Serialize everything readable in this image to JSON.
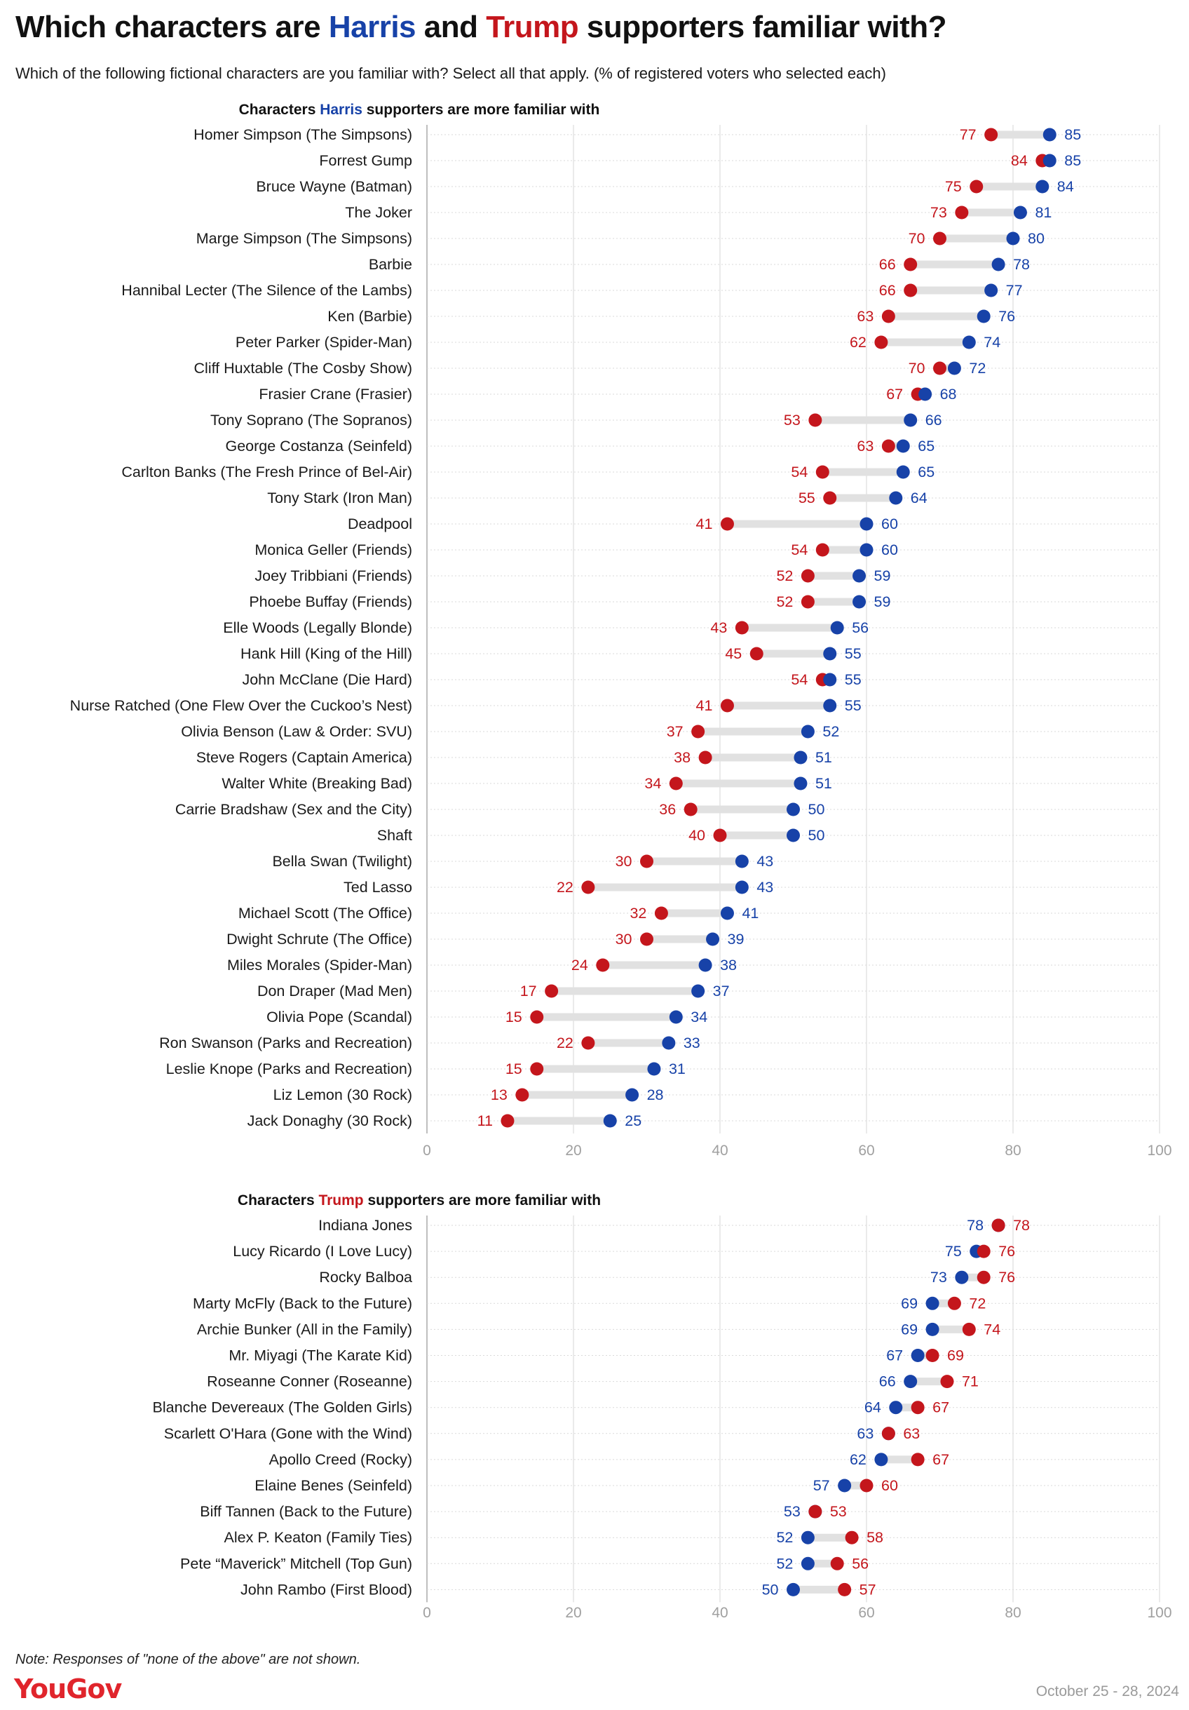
{
  "title": {
    "prefix": "Which characters are ",
    "harris": "Harris",
    "and": " and ",
    "trump": "Trump",
    "suffix": " supporters familiar with?"
  },
  "subtitle": "Which of the following fictional characters are you familiar with? Select all that apply. (% of registered voters who selected each)",
  "note": "Note: Responses of \"none of the above\" are not shown.",
  "logo": "YouGov",
  "date": "October 25 - 28, 2024",
  "colors": {
    "harris": "#1742a8",
    "trump": "#c4161c",
    "connector": "#e1e1e1",
    "grid": "#d6d6d6",
    "axis": "#a9a9a9"
  },
  "chart_data": [
    {
      "type": "dumbbell",
      "title_prefix": "Characters ",
      "title_highlight": "Harris",
      "title_suffix": " supporters are more familiar with",
      "highlight_color": "#1742a8",
      "xlim": [
        0,
        100
      ],
      "xticks": [
        0,
        20,
        40,
        60,
        80,
        100
      ],
      "series": [
        "Harris",
        "Trump"
      ],
      "rows": [
        {
          "label": "Homer Simpson (The Simpsons)",
          "harris": 85,
          "trump": 77
        },
        {
          "label": "Forrest Gump",
          "harris": 85,
          "trump": 84
        },
        {
          "label": "Bruce Wayne (Batman)",
          "harris": 84,
          "trump": 75
        },
        {
          "label": "The Joker",
          "harris": 81,
          "trump": 73
        },
        {
          "label": "Marge Simpson (The Simpsons)",
          "harris": 80,
          "trump": 70
        },
        {
          "label": "Barbie",
          "harris": 78,
          "trump": 66
        },
        {
          "label": "Hannibal Lecter (The Silence of the Lambs)",
          "harris": 77,
          "trump": 66
        },
        {
          "label": "Ken (Barbie)",
          "harris": 76,
          "trump": 63
        },
        {
          "label": "Peter Parker (Spider-Man)",
          "harris": 74,
          "trump": 62
        },
        {
          "label": "Cliff Huxtable (The Cosby Show)",
          "harris": 72,
          "trump": 70
        },
        {
          "label": "Frasier Crane (Frasier)",
          "harris": 68,
          "trump": 67
        },
        {
          "label": "Tony Soprano (The Sopranos)",
          "harris": 66,
          "trump": 53
        },
        {
          "label": "George Costanza (Seinfeld)",
          "harris": 65,
          "trump": 63
        },
        {
          "label": "Carlton Banks (The Fresh Prince of Bel-Air)",
          "harris": 65,
          "trump": 54
        },
        {
          "label": "Tony Stark (Iron Man)",
          "harris": 64,
          "trump": 55
        },
        {
          "label": "Deadpool",
          "harris": 60,
          "trump": 41
        },
        {
          "label": "Monica Geller (Friends)",
          "harris": 60,
          "trump": 54
        },
        {
          "label": "Joey Tribbiani (Friends)",
          "harris": 59,
          "trump": 52
        },
        {
          "label": "Phoebe Buffay (Friends)",
          "harris": 59,
          "trump": 52
        },
        {
          "label": "Elle Woods (Legally Blonde)",
          "harris": 56,
          "trump": 43
        },
        {
          "label": "Hank Hill (King of the Hill)",
          "harris": 55,
          "trump": 45
        },
        {
          "label": "John McClane (Die Hard)",
          "harris": 55,
          "trump": 54
        },
        {
          "label": "Nurse Ratched (One Flew Over the Cuckoo’s Nest)",
          "harris": 55,
          "trump": 41
        },
        {
          "label": "Olivia Benson (Law & Order: SVU)",
          "harris": 52,
          "trump": 37
        },
        {
          "label": "Steve Rogers (Captain America)",
          "harris": 51,
          "trump": 38
        },
        {
          "label": "Walter White (Breaking Bad)",
          "harris": 51,
          "trump": 34
        },
        {
          "label": "Carrie Bradshaw (Sex and the City)",
          "harris": 50,
          "trump": 36
        },
        {
          "label": "Shaft",
          "harris": 50,
          "trump": 40
        },
        {
          "label": "Bella Swan (Twilight)",
          "harris": 43,
          "trump": 30
        },
        {
          "label": "Ted Lasso",
          "harris": 43,
          "trump": 22
        },
        {
          "label": "Michael Scott (The Office)",
          "harris": 41,
          "trump": 32
        },
        {
          "label": "Dwight Schrute (The Office)",
          "harris": 39,
          "trump": 30
        },
        {
          "label": "Miles Morales (Spider-Man)",
          "harris": 38,
          "trump": 24
        },
        {
          "label": "Don Draper (Mad Men)",
          "harris": 37,
          "trump": 17
        },
        {
          "label": "Olivia Pope (Scandal)",
          "harris": 34,
          "trump": 15
        },
        {
          "label": "Ron Swanson (Parks and Recreation)",
          "harris": 33,
          "trump": 22
        },
        {
          "label": "Leslie Knope (Parks and Recreation)",
          "harris": 31,
          "trump": 15
        },
        {
          "label": "Liz Lemon (30 Rock)",
          "harris": 28,
          "trump": 13
        },
        {
          "label": "Jack Donaghy (30 Rock)",
          "harris": 25,
          "trump": 11
        }
      ]
    },
    {
      "type": "dumbbell",
      "title_prefix": "Characters ",
      "title_highlight": "Trump",
      "title_suffix": " supporters are more familiar with",
      "highlight_color": "#c4161c",
      "xlim": [
        0,
        100
      ],
      "xticks": [
        0,
        20,
        40,
        60,
        80,
        100
      ],
      "series": [
        "Harris",
        "Trump"
      ],
      "rows": [
        {
          "label": "Indiana Jones",
          "harris": 78,
          "trump": 78
        },
        {
          "label": "Lucy Ricardo (I Love Lucy)",
          "harris": 75,
          "trump": 76
        },
        {
          "label": "Rocky Balboa",
          "harris": 73,
          "trump": 76
        },
        {
          "label": "Marty McFly (Back to the Future)",
          "harris": 69,
          "trump": 72
        },
        {
          "label": "Archie Bunker (All in the Family)",
          "harris": 69,
          "trump": 74
        },
        {
          "label": "Mr. Miyagi (The Karate Kid)",
          "harris": 67,
          "trump": 69
        },
        {
          "label": "Roseanne Conner (Roseanne)",
          "harris": 66,
          "trump": 71
        },
        {
          "label": "Blanche Devereaux (The Golden Girls)",
          "harris": 64,
          "trump": 67
        },
        {
          "label": "Scarlett O'Hara (Gone with the Wind)",
          "harris": 63,
          "trump": 63
        },
        {
          "label": "Apollo Creed (Rocky)",
          "harris": 62,
          "trump": 67
        },
        {
          "label": "Elaine Benes (Seinfeld)",
          "harris": 57,
          "trump": 60
        },
        {
          "label": "Biff Tannen (Back to the Future)",
          "harris": 53,
          "trump": 53
        },
        {
          "label": "Alex P. Keaton (Family Ties)",
          "harris": 52,
          "trump": 58
        },
        {
          "label": "Pete “Maverick” Mitchell (Top Gun)",
          "harris": 52,
          "trump": 56
        },
        {
          "label": "John Rambo (First Blood)",
          "harris": 50,
          "trump": 57
        }
      ]
    }
  ]
}
